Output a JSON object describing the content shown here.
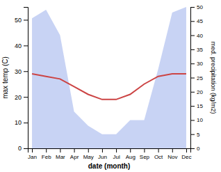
{
  "chart_data": {
    "type": "line",
    "categories": [
      "Jan",
      "Feb",
      "Mar",
      "Apr",
      "May",
      "Jun",
      "Jul",
      "Aug",
      "Sep",
      "Oct",
      "Nov",
      "Dec"
    ],
    "xlabel": "date (month)",
    "ylabel": "max temp (C)",
    "y2label": "med. precipitation (kg/m2)",
    "series": [
      {
        "type": "line",
        "color": "#cc4444",
        "values": [
          29,
          28,
          27,
          24,
          21,
          19,
          19,
          21,
          25,
          28,
          29,
          29
        ]
      },
      {
        "type": "area",
        "axis": "y2",
        "color": "#aabbee",
        "values": [
          46,
          49,
          40,
          13,
          8,
          5,
          5,
          10,
          10,
          28,
          48,
          50
        ]
      }
    ],
    "ylim": [
      0,
      55
    ],
    "yticks": [
      0,
      10,
      20,
      30,
      40,
      50
    ],
    "y2lim": [
      0,
      50
    ],
    "y2ticks": [
      0,
      5,
      10,
      15,
      20,
      25,
      30,
      35,
      40,
      45,
      50
    ],
    "grid": false
  }
}
